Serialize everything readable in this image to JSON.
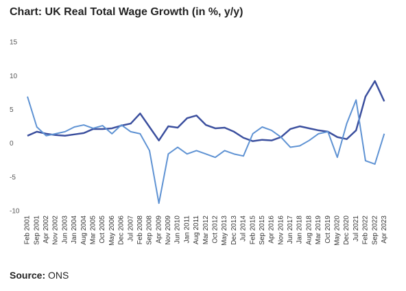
{
  "chart_data": {
    "type": "line",
    "title": "Chart: UK Real Total Wage Growth (in %, y/y)",
    "source_label": "Source:",
    "source": "ONS",
    "categories": [
      "Feb 2001",
      "Sep 2001",
      "Apr 2002",
      "Nov 2002",
      "Jun 2003",
      "Jan 2004",
      "Aug 2004",
      "Mar 2005",
      "Oct 2005",
      "May 2006",
      "Dec 2006",
      "Jul 2007",
      "Feb 2008",
      "Sep 2008",
      "Apr 2009",
      "Nov 2009",
      "Jun 2010",
      "Jan 2011",
      "Aug 2011",
      "Mar 2012",
      "Oct 2012",
      "May 2013",
      "Dec 2013",
      "Jul 2014",
      "Feb 2015",
      "Sep 2015",
      "Apr 2016",
      "Nov 2016",
      "Jun 2017",
      "Jan 2018",
      "Aug 2018",
      "Mar 2019",
      "Oct 2019",
      "May 2020",
      "Dec 2020",
      "Jul 2021",
      "Feb 2022",
      "Sep 2022",
      "Apr 2023"
    ],
    "series": [
      {
        "color": "#3b4f9e",
        "values": [
          1.2,
          1.8,
          1.5,
          1.3,
          1.2,
          1.4,
          1.6,
          2.2,
          2.2,
          2.3,
          2.7,
          3.0,
          4.5,
          2.5,
          0.5,
          2.6,
          2.4,
          3.8,
          4.2,
          2.8,
          2.3,
          2.4,
          1.8,
          0.9,
          0.4,
          0.6,
          0.5,
          1.0,
          2.2,
          2.6,
          2.3,
          2.0,
          1.8,
          1.0,
          0.7,
          2.0,
          7.0,
          9.3,
          6.3
        ]
      },
      {
        "color": "#5e92d3",
        "values": [
          7.0,
          2.5,
          1.2,
          1.5,
          1.8,
          2.5,
          2.8,
          2.3,
          2.7,
          1.5,
          2.8,
          1.8,
          1.5,
          -1.0,
          -8.8,
          -1.5,
          -0.5,
          -1.5,
          -1.0,
          -1.5,
          -2.0,
          -1.0,
          -1.5,
          -1.8,
          1.5,
          2.5,
          2.0,
          1.0,
          -0.5,
          -0.3,
          0.5,
          1.5,
          1.8,
          -2.0,
          3.0,
          6.5,
          -2.5,
          -3.0,
          1.5
        ]
      }
    ],
    "ylim": [
      -10,
      15
    ],
    "yticks": [
      15,
      10,
      5,
      0,
      -5,
      -10
    ],
    "grid": false
  }
}
